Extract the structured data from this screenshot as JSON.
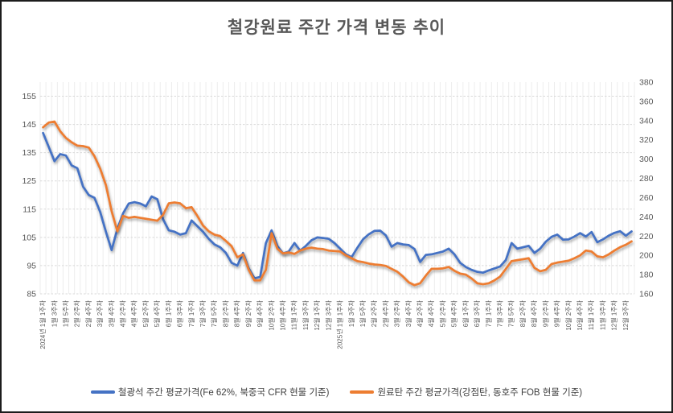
{
  "title": "철강원료 주간 가격 변동 추이",
  "chart_data": {
    "type": "line",
    "title": "철강원료 주간 가격 변동 추이",
    "x_axis": {
      "tick_labels": [
        "2024년 1월 1주차",
        "1월 3주차",
        "1월 5주차",
        "2월 2주차",
        "2월 4주차",
        "3월 2주차",
        "3월 4주차",
        "4월 2주차",
        "4월 4주차",
        "5월 2주차",
        "5월 4주차",
        "6월 1주차",
        "6월 3주차",
        "7월 1주차",
        "7월 3주차",
        "7월 5주차",
        "8월 2주차",
        "8월 4주차",
        "9월 2주차",
        "9월 4주차",
        "10월 2주차",
        "10월 4주차",
        "11월 1주차",
        "11월 3주차",
        "12월 1주차",
        "12월 3주차",
        "2025년 1월 1주차",
        "1월 3주차",
        "1월 5주차",
        "2월 2주차",
        "2월 4주차",
        "3월 2주차",
        "3월 4주차",
        "4월 2주차",
        "4월 4주차",
        "5월 2주차",
        "5월 4주차",
        "6월 1주차",
        "6월 3주차",
        "7월 1주차",
        "7월 3주차",
        "7월 5주차",
        "8월 2주차",
        "8월 4주차",
        "9월 2주차",
        "9월 4주차",
        "10월 2주차",
        "10월 4주차",
        "11월 1주차",
        "11월 3주차",
        "12월 1주차",
        "12월 3주차"
      ],
      "points_between_labels": 2,
      "total_points": 104
    },
    "y_left": {
      "min": 85,
      "max": 160,
      "tick_step": 10,
      "ticks": [
        155,
        145,
        135,
        125,
        115,
        105,
        95,
        85
      ]
    },
    "y_right": {
      "min": 160,
      "max": 380,
      "tick_step": 20,
      "ticks": [
        380,
        360,
        340,
        320,
        300,
        280,
        260,
        240,
        220,
        200,
        180,
        160
      ]
    },
    "grid": {
      "horizontal": "dashed",
      "vertical_per_week": true
    },
    "legend_position": "bottom",
    "series": [
      {
        "key": "iron-ore",
        "name": "철광석 주간 평균가격(Fe 62%, 북중국 CFR 현물 기준)",
        "axis": "left",
        "color": "#4472C4",
        "values": [
          142,
          137,
          132,
          134.5,
          134,
          130.5,
          129.5,
          123,
          120,
          119,
          114,
          107,
          100.5,
          108,
          113.5,
          117,
          117.5,
          117,
          116,
          119.5,
          118.5,
          111.5,
          107.5,
          107,
          106,
          106.5,
          111,
          109,
          107,
          104.5,
          102.5,
          101.5,
          99.5,
          96,
          95,
          99.5,
          94,
          90.5,
          91,
          103,
          107.5,
          102,
          99.3,
          100,
          103,
          100.3,
          102,
          104,
          105,
          104.8,
          104.5,
          103,
          101,
          99,
          98,
          101.3,
          104.3,
          106.1,
          107.3,
          107.4,
          105.7,
          101.7,
          103,
          102.5,
          102.3,
          100.9,
          96.3,
          98.8,
          99,
          99.5,
          100,
          101,
          99,
          96,
          94.5,
          93.5,
          92.8,
          92.5,
          93.3,
          94,
          94.7,
          97,
          103,
          101,
          101.5,
          102,
          99.5,
          101,
          103.5,
          105.2,
          106,
          104.2,
          104.3,
          105.3,
          106.5,
          105.3,
          106.9,
          103.3,
          104.3,
          105.6,
          106.6,
          107.2,
          105.6,
          107.1
        ]
      },
      {
        "key": "coking-coal",
        "name": "원료탄 주간 평균가격(강점탄, 동호주 FOB 현물 기준)",
        "axis": "right",
        "color": "#ED7D31",
        "values": [
          333,
          338,
          339,
          329,
          322,
          317.5,
          314,
          313.5,
          312,
          303,
          290,
          273,
          246,
          225,
          241,
          239,
          240,
          239,
          238,
          237,
          236,
          242,
          254,
          255,
          254,
          249,
          250,
          241,
          231,
          225,
          221.5,
          220,
          215,
          209.5,
          198,
          201,
          185,
          174,
          174,
          185,
          223,
          207,
          202,
          203,
          201.5,
          205,
          207,
          208,
          207,
          206.5,
          205,
          204.5,
          204,
          200,
          197,
          194,
          193,
          191.5,
          190.5,
          190,
          189,
          186,
          183,
          178,
          172,
          169,
          171,
          179,
          186,
          186,
          186.5,
          188,
          184,
          181,
          180,
          176,
          171,
          170,
          171,
          174,
          178,
          186,
          194,
          195,
          196,
          197,
          187,
          183.5,
          185,
          191,
          192.5,
          193.5,
          194.5,
          197,
          200,
          205,
          204,
          199,
          198,
          201,
          205,
          208.5,
          211,
          214.5
        ]
      }
    ],
    "style": {
      "title_color": "#595959",
      "axis_label_color": "#595959",
      "h_gridline_color": "#D9D9D9",
      "v_gridline_color": "#EDEDED",
      "line_width": 2.75
    }
  }
}
